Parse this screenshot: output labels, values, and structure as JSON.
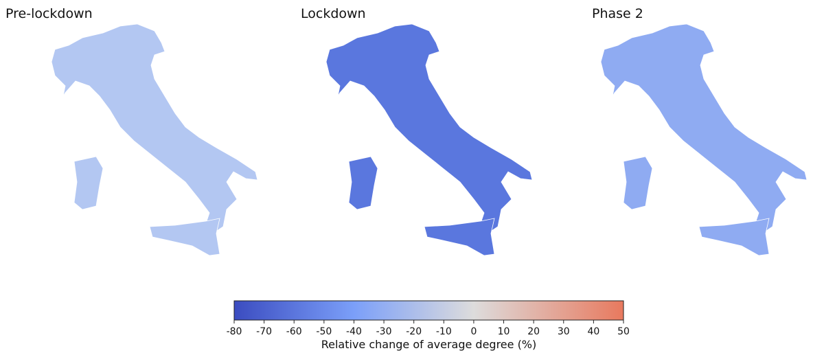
{
  "panels": [
    {
      "title": "Pre-lockdown"
    },
    {
      "title": "Lockdown"
    },
    {
      "title": "Phase 2"
    }
  ],
  "colorbar": {
    "lim": [
      -80,
      50
    ],
    "ticks": [
      -80,
      -70,
      -60,
      -50,
      -40,
      -30,
      -20,
      -10,
      0,
      10,
      20,
      30,
      40,
      50
    ],
    "label": "Relative change of average degree (%)",
    "color_stops": [
      {
        "value": -80,
        "color": "#3b4cc0"
      },
      {
        "value": -40,
        "color": "#7b9ff9"
      },
      {
        "value": 0,
        "color": "#dddcdc"
      },
      {
        "value": 50,
        "color": "#e8795e"
      }
    ]
  }
}
